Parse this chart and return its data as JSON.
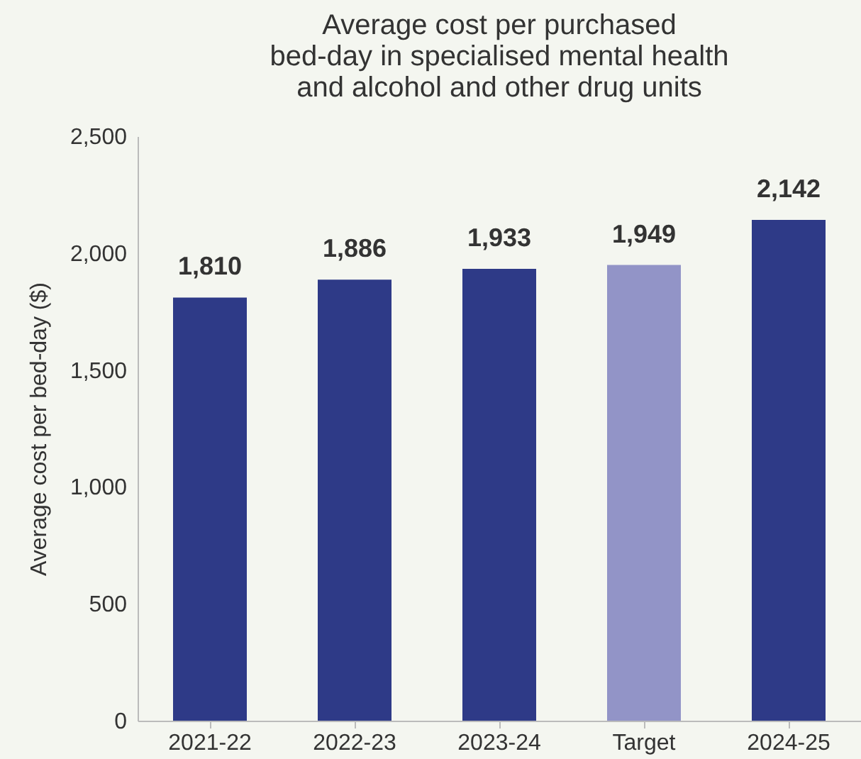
{
  "chart_data": {
    "type": "bar",
    "title": [
      "Average cost per purchased",
      "bed-day in specialised mental health",
      "and alcohol and other drug units"
    ],
    "ylabel": "Average cost per bed-day ($)",
    "categories": [
      "2021-22",
      "2022-23",
      "2023-24",
      "Target",
      "2024-25"
    ],
    "values": [
      1810,
      1886,
      1933,
      1949,
      2142
    ],
    "value_labels": [
      "1,810",
      "1,886",
      "1,933",
      "1,949",
      "2,142"
    ],
    "colors": [
      "#2e3a87",
      "#2e3a87",
      "#2e3a87",
      "#9294c7",
      "#2e3a87"
    ],
    "ylim": [
      0,
      2500
    ],
    "yticks": [
      0,
      500,
      {
        "value": 1000,
        "label": "1,000"
      },
      {
        "value": 1500,
        "label": "1,500"
      },
      {
        "value": 2000,
        "label": "2,000"
      },
      {
        "value": 2500,
        "label": "2,500"
      }
    ],
    "grid": false
  }
}
